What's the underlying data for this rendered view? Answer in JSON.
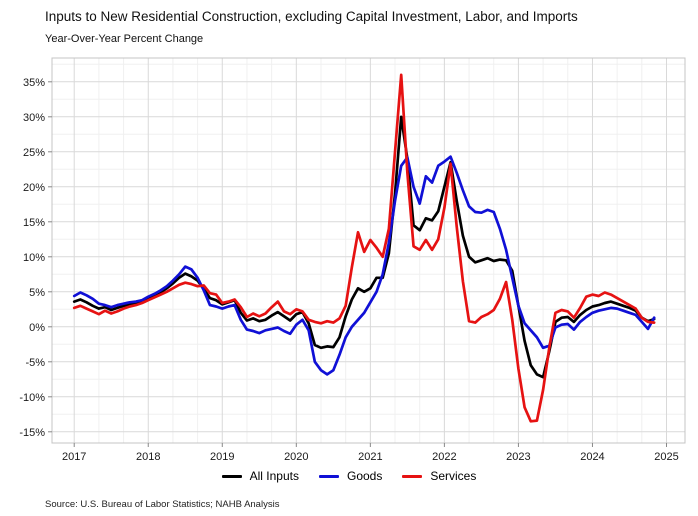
{
  "title": "Inputs to New Residential Construction, excluding Capital Investment, Labor, and Imports",
  "subtitle": "Year-Over-Year Percent Change",
  "source": "Source: U.S. Bureau of Labor Statistics; NAHB Analysis",
  "colors": {
    "all_inputs": "#000000",
    "goods": "#1010d6",
    "services": "#e61212",
    "grid_major": "#d9d9d9",
    "grid_minor": "#f0f0f0",
    "panel_border": "#c4c4c4",
    "tick": "#888888",
    "axis_text": "#1a1a1a"
  },
  "legend": {
    "items": [
      {
        "label": "All Inputs",
        "color": "#000000"
      },
      {
        "label": "Goods",
        "color": "#1010d6"
      },
      {
        "label": "Services",
        "color": "#e61212"
      }
    ]
  },
  "chart_data": {
    "type": "line",
    "title": "Inputs to New Residential Construction, excluding Capital Investment, Labor, and Imports",
    "subtitle": "Year-Over-Year Percent Change",
    "x_unit": "monthly",
    "x_start": "2017-01",
    "x_end": "2024-11",
    "x_ticks": [
      2017,
      2018,
      2019,
      2020,
      2021,
      2022,
      2023,
      2024,
      2025
    ],
    "y_ticks": [
      35,
      30,
      25,
      20,
      15,
      10,
      5,
      0,
      -5,
      -10,
      -15
    ],
    "y_tick_suffix": "%",
    "xlim": [
      2016.7,
      2025.25
    ],
    "ylim": [
      -16.6,
      38.4
    ],
    "grid": true,
    "legend_position": "bottom",
    "series": [
      {
        "name": "All Inputs",
        "color": "#000000",
        "values": [
          3.6,
          3.9,
          3.5,
          3.0,
          2.6,
          2.8,
          2.4,
          2.7,
          3.0,
          3.2,
          3.4,
          3.7,
          4.2,
          4.5,
          4.9,
          5.5,
          6.2,
          7.0,
          7.6,
          7.2,
          6.6,
          5.4,
          4.1,
          3.8,
          3.2,
          3.5,
          3.8,
          2.0,
          0.9,
          1.2,
          0.8,
          1.0,
          1.6,
          2.1,
          1.5,
          0.9,
          1.8,
          2.1,
          0.5,
          -2.6,
          -3.0,
          -2.8,
          -2.9,
          -1.5,
          1.5,
          3.9,
          5.5,
          5.0,
          5.5,
          7.0,
          7.0,
          10.5,
          19.0,
          30.0,
          24.0,
          14.5,
          13.8,
          15.5,
          15.2,
          16.5,
          20.0,
          23.5,
          18.0,
          13.0,
          10.0,
          9.2,
          9.5,
          9.8,
          9.4,
          9.6,
          9.5,
          8.0,
          3.0,
          -2.0,
          -5.5,
          -6.8,
          -7.2,
          -3.5,
          0.7,
          1.3,
          1.4,
          0.7,
          1.7,
          2.4,
          2.9,
          3.1,
          3.4,
          3.6,
          3.3,
          3.0,
          2.7,
          2.3,
          1.3,
          0.8,
          1.1
        ]
      },
      {
        "name": "Goods",
        "color": "#1010d6",
        "values": [
          4.4,
          4.9,
          4.5,
          4.0,
          3.3,
          3.1,
          2.8,
          3.1,
          3.3,
          3.5,
          3.6,
          3.8,
          4.3,
          4.7,
          5.2,
          5.8,
          6.6,
          7.5,
          8.6,
          8.2,
          7.0,
          5.2,
          3.1,
          2.9,
          2.6,
          2.9,
          3.1,
          1.0,
          -0.4,
          -0.6,
          -0.9,
          -0.5,
          -0.3,
          -0.1,
          -0.6,
          -1.0,
          0.3,
          1.0,
          -0.5,
          -5.0,
          -6.2,
          -6.8,
          -6.2,
          -4.0,
          -1.5,
          0.0,
          1.0,
          2.0,
          3.5,
          5.0,
          7.5,
          12.0,
          18.0,
          23.0,
          24.2,
          20.0,
          17.6,
          21.5,
          20.6,
          23.0,
          23.6,
          24.3,
          22.0,
          19.5,
          17.2,
          16.4,
          16.3,
          16.7,
          16.4,
          14.0,
          11.0,
          7.0,
          3.0,
          0.5,
          -0.5,
          -1.5,
          -3.0,
          -2.7,
          -0.1,
          0.3,
          0.4,
          -0.4,
          0.7,
          1.4,
          2.0,
          2.3,
          2.5,
          2.7,
          2.6,
          2.3,
          2.0,
          1.7,
          0.7,
          -0.3,
          1.3
        ]
      },
      {
        "name": "Services",
        "color": "#e61212",
        "values": [
          2.7,
          3.0,
          2.6,
          2.2,
          1.8,
          2.3,
          1.9,
          2.2,
          2.6,
          2.9,
          3.1,
          3.4,
          3.8,
          4.2,
          4.6,
          5.0,
          5.5,
          6.0,
          6.3,
          6.1,
          5.8,
          5.9,
          4.8,
          4.6,
          3.4,
          3.6,
          3.9,
          2.8,
          1.4,
          1.9,
          1.5,
          1.9,
          2.8,
          3.6,
          2.2,
          1.8,
          2.5,
          2.2,
          1.0,
          0.7,
          0.5,
          0.8,
          0.6,
          1.2,
          3.0,
          8.5,
          13.5,
          10.7,
          12.4,
          11.3,
          10.0,
          14.0,
          25.0,
          36.0,
          22.0,
          11.5,
          11.0,
          12.4,
          11.0,
          12.5,
          17.0,
          23.3,
          14.3,
          6.5,
          0.8,
          0.6,
          1.4,
          1.8,
          2.4,
          4.0,
          6.4,
          1.0,
          -6.0,
          -11.5,
          -13.5,
          -13.4,
          -9.0,
          -3.0,
          2.0,
          2.4,
          2.2,
          1.3,
          2.7,
          4.3,
          4.6,
          4.4,
          4.9,
          4.6,
          4.1,
          3.6,
          3.1,
          2.6,
          1.3,
          0.7,
          0.6
        ]
      }
    ]
  }
}
